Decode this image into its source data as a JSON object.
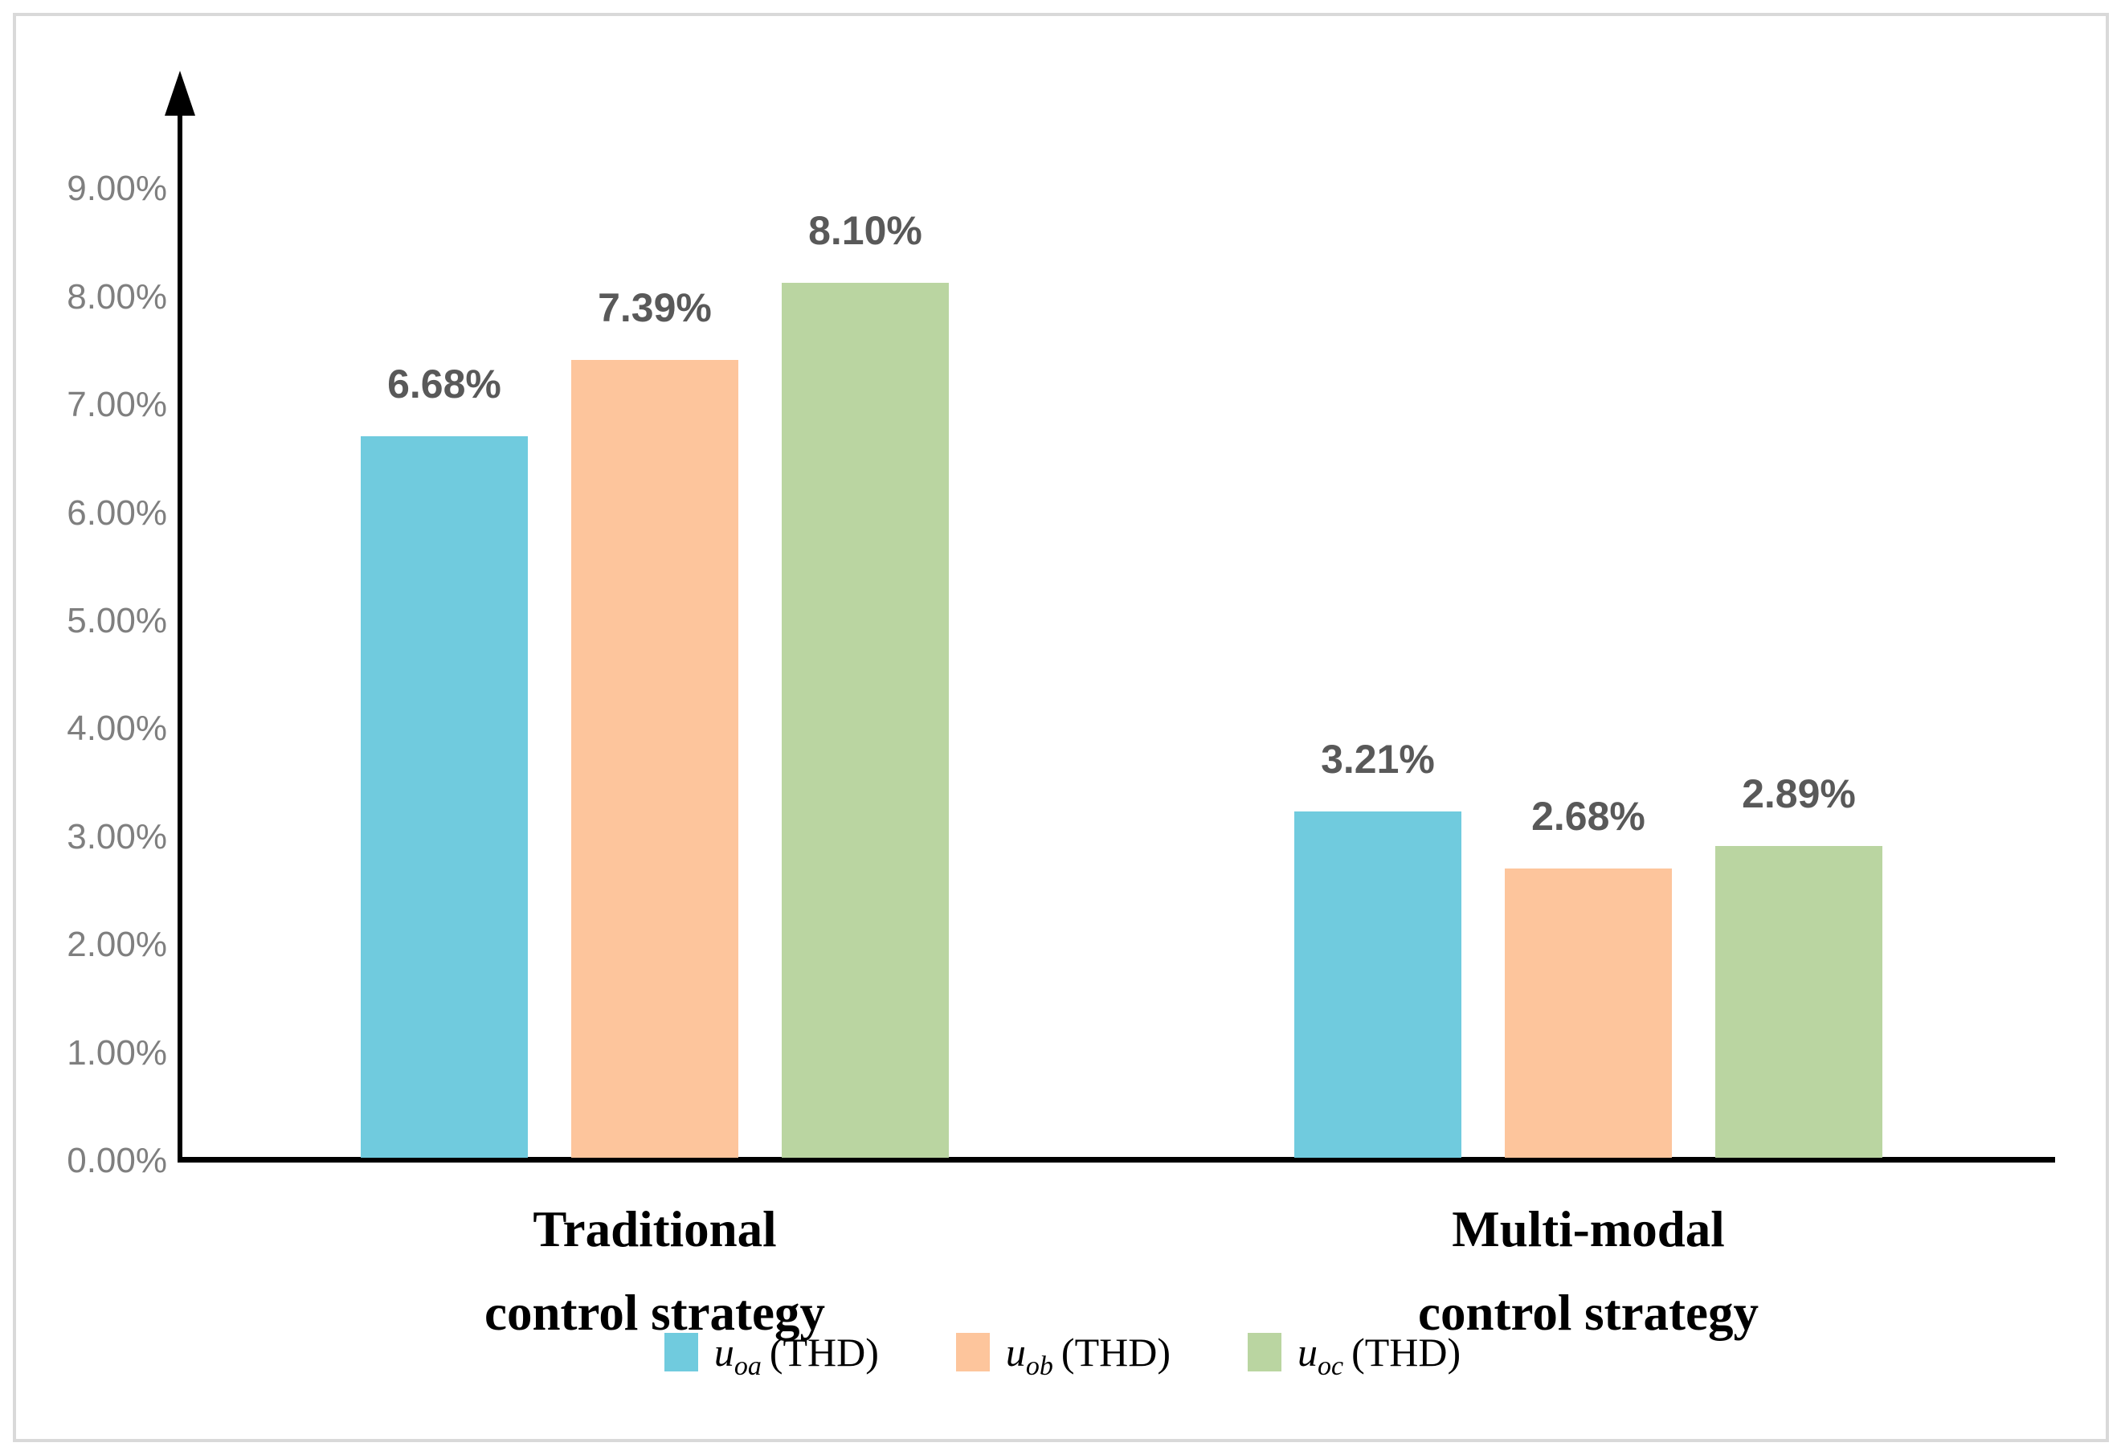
{
  "figure": {
    "background": "#FFFFFF",
    "border_color": "#D9D9D9"
  },
  "chart_data": {
    "type": "bar",
    "title": "",
    "xlabel": "",
    "ylabel": "",
    "categories": [
      "Traditional control strategy",
      "Multi-modal control strategy"
    ],
    "category_lines": [
      [
        "Traditional",
        "control strategy"
      ],
      [
        "Multi-modal",
        "control strategy"
      ]
    ],
    "ylim": [
      0,
      9
    ],
    "y_unit": "%",
    "grid": false,
    "legend_position": "bottom",
    "y_ticks": [
      {
        "value": 0,
        "label": "0.00%"
      },
      {
        "value": 1,
        "label": "1.00%"
      },
      {
        "value": 2,
        "label": "2.00%"
      },
      {
        "value": 3,
        "label": "3.00%"
      },
      {
        "value": 4,
        "label": "4.00%"
      },
      {
        "value": 5,
        "label": "5.00%"
      },
      {
        "value": 6,
        "label": "6.00%"
      },
      {
        "value": 7,
        "label": "7.00%"
      },
      {
        "value": 8,
        "label": "8.00%"
      },
      {
        "value": 9,
        "label": "9.00%"
      }
    ],
    "series": [
      {
        "name": "uoa (THD)",
        "legend": {
          "variable": "u",
          "subscript": "oa",
          "suffix": "(THD)"
        },
        "color": "#70CBDE",
        "values": [
          6.68,
          3.21
        ],
        "labels": [
          "6.68%",
          "3.21%"
        ]
      },
      {
        "name": "uob (THD)",
        "legend": {
          "variable": "u",
          "subscript": "ob",
          "suffix": "(THD)"
        },
        "color": "#FDC59C",
        "values": [
          7.39,
          2.68
        ],
        "labels": [
          "7.39%",
          "2.68%"
        ]
      },
      {
        "name": "uoc (THD)",
        "legend": {
          "variable": "u",
          "subscript": "oc",
          "suffix": "(THD)"
        },
        "color": "#BAD5A1",
        "values": [
          8.1,
          2.89
        ],
        "labels": [
          "8.10%",
          "2.89%"
        ]
      }
    ],
    "colors": {
      "axis": "#000000",
      "tick_labels": "#7F7F7F",
      "data_labels": "#595959",
      "category_labels": "#000000"
    }
  }
}
